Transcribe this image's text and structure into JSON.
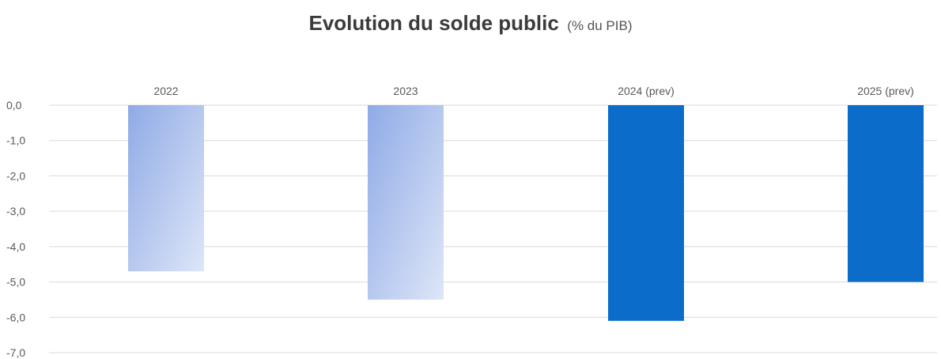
{
  "chart_data": {
    "type": "bar",
    "title": "Evolution du solde public",
    "subtitle": "(% du PIB)",
    "categories": [
      "2022",
      "2023",
      "2024 (prev)",
      "2025 (prev)"
    ],
    "values": [
      -4.7,
      -5.5,
      -6.1,
      -5.0
    ],
    "ylim": [
      -7.0,
      0.0
    ],
    "yticks": [
      "0,0",
      "-1,0",
      "-2,0",
      "-3,0",
      "-4,0",
      "-5,0",
      "-6,0",
      "-7,0"
    ],
    "grid": true,
    "legend": "none",
    "xlabel": "",
    "ylabel": "",
    "colors": {
      "actual_light": "#dde6f8",
      "actual_dark": "#8faae6",
      "forecast": "#0b6cc9",
      "grid": "#d9d9d9"
    }
  }
}
